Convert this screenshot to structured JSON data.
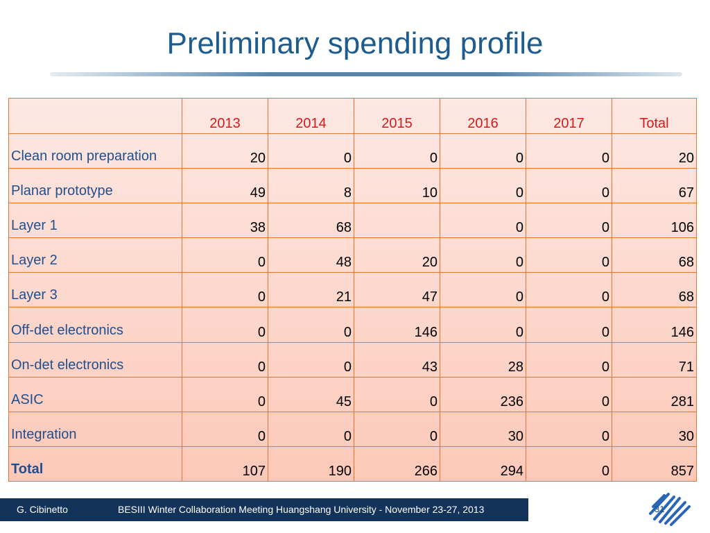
{
  "slide": {
    "title": "Preliminary spending profile"
  },
  "table": {
    "headers": [
      "",
      "2013",
      "2014",
      "2015",
      "2016",
      "2017",
      "Total"
    ],
    "rows": [
      {
        "label": "Clean room preparation",
        "values": [
          "20",
          "0",
          "0",
          "0",
          "0",
          "20"
        ]
      },
      {
        "label": "Planar prototype",
        "values": [
          "49",
          "8",
          "10",
          "0",
          "0",
          "67"
        ]
      },
      {
        "label": "Layer 1",
        "values": [
          "38",
          "68",
          "",
          "0",
          "0",
          "106"
        ]
      },
      {
        "label": "Layer 2",
        "values": [
          "0",
          "48",
          "20",
          "0",
          "0",
          "68"
        ]
      },
      {
        "label": "Layer 3",
        "values": [
          "0",
          "21",
          "47",
          "0",
          "0",
          "68"
        ]
      },
      {
        "label": "Off-det electronics",
        "values": [
          "0",
          "0",
          "146",
          "0",
          "0",
          "146"
        ]
      },
      {
        "label": "On-det electronics",
        "values": [
          "0",
          "0",
          "43",
          "28",
          "0",
          "71"
        ]
      },
      {
        "label": "ASIC",
        "values": [
          "0",
          "45",
          "0",
          "236",
          "0",
          "281"
        ]
      },
      {
        "label": "Integration",
        "values": [
          "0",
          "0",
          "0",
          "30",
          "0",
          "30"
        ]
      },
      {
        "label": "Total",
        "values": [
          "107",
          "190",
          "266",
          "294",
          "0",
          "857"
        ]
      }
    ]
  },
  "footer": {
    "author": "G. Cibinetto",
    "event": "BESIII Winter Collaboration Meeting Huangshang University - November 23-27, 2013",
    "page_number": "31"
  },
  "colors": {
    "title": "#1f5c8e",
    "header_text": "#d61a1a",
    "label_text": "#1f4f8e",
    "grid": "#e2762f",
    "footer_bg": "#14335a"
  },
  "icons": {
    "logo": "besiii-logo-icon"
  }
}
